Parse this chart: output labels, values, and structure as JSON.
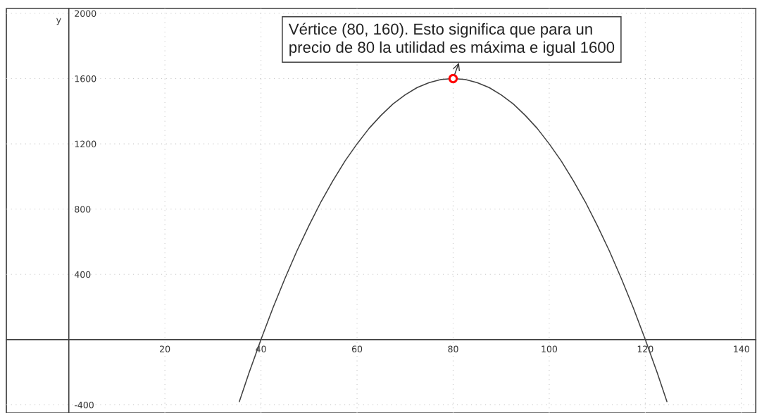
{
  "chart_data": {
    "type": "line",
    "ylabel": "y",
    "annotations": [
      {
        "text": "Vértice (80, 160). Esto significa que para un\nprecio de 80 la utilidad es máxima e igual 1600",
        "x": 80,
        "y": 1600
      }
    ],
    "series": [
      {
        "color": "#404040",
        "marker": "none",
        "x": [
          35.5,
          37.5,
          40,
          42.5,
          45,
          47.5,
          50,
          52.5,
          55,
          57.5,
          60,
          62.5,
          65,
          67.5,
          70,
          72.5,
          75,
          77.5,
          80,
          82.5,
          85,
          87.5,
          90,
          92.5,
          95,
          97.5,
          100,
          102.5,
          105,
          107.5,
          110,
          112.5,
          115,
          117.5,
          120,
          122.5,
          124.5
        ],
        "values": [
          -380,
          -205,
          0,
          195,
          375,
          545,
          700,
          845,
          975,
          1095,
          1200,
          1295,
          1375,
          1445,
          1500,
          1545,
          1575,
          1595,
          1600,
          1595,
          1575,
          1545,
          1500,
          1445,
          1375,
          1295,
          1200,
          1095,
          975,
          845,
          700,
          545,
          375,
          195,
          0,
          -205,
          -380
        ]
      },
      {
        "type": "scatter",
        "color": "#ff0000",
        "marker": "circle",
        "x": [
          80
        ],
        "values": [
          1600
        ]
      }
    ],
    "xlim": [
      -13,
      143
    ],
    "ylim": [
      -450,
      2030
    ],
    "xticks": [
      20,
      40,
      60,
      80,
      100,
      120,
      140
    ],
    "yticks": [
      -400,
      400,
      800,
      1200,
      1600,
      2000
    ],
    "grid": true
  }
}
